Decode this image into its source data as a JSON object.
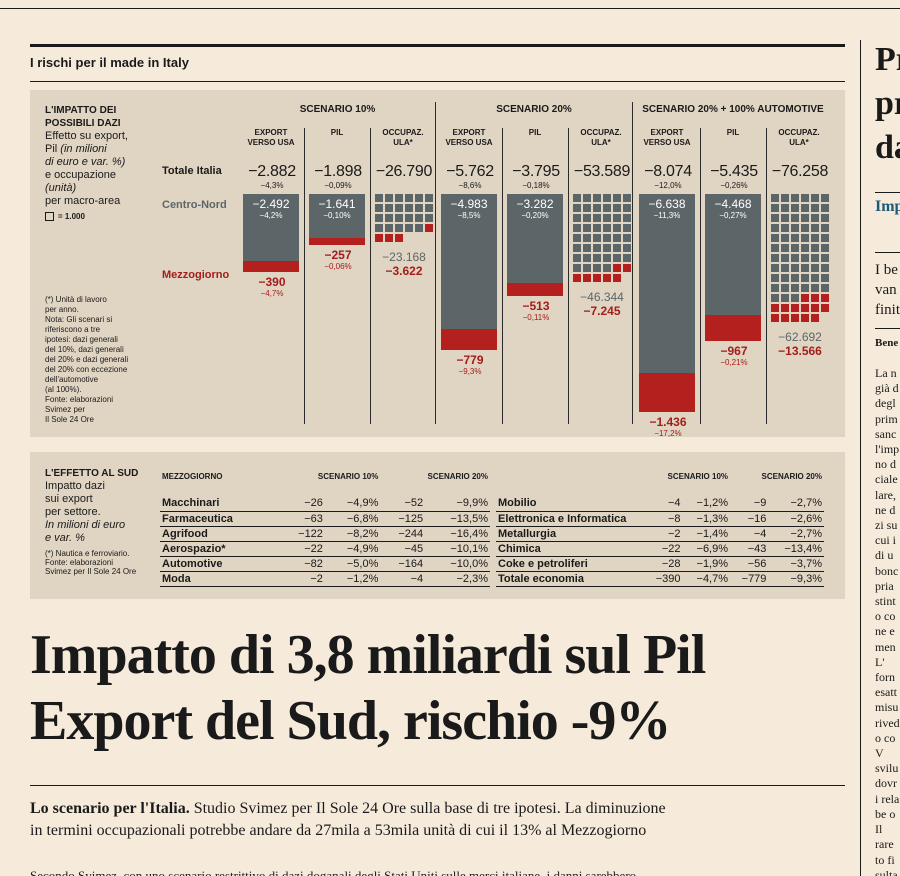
{
  "section_title": "I rischi per il made in Italy",
  "legend": {
    "title": "L'IMPATTO DEI POSSIBILI DAZI",
    "desc_1": "Effetto su export,",
    "desc_2": "Pil",
    "desc_2i": " (in milioni",
    "desc_3i": "di euro e var. %)",
    "desc_4": "e occupazione",
    "desc_5i": "(unità)",
    "desc_6": "per macro-area",
    "square_note": "= 1.000",
    "notes": [
      "(*) Unità di lavoro",
      "per anno.",
      "Nota: Gli scenari si",
      "riferiscono a tre",
      "ipotesi: dazi generali",
      "del 10%, dazi generali",
      "del 20% e dazi generali",
      "del 20% con eccezione",
      "dell'automotive",
      "(al 100%).",
      "Fonte: elaborazioni",
      "Svimez per",
      "Il Sole 24 Ore"
    ]
  },
  "row_labels": {
    "total": "Totale Italia",
    "north": "Centro-Nord",
    "south": "Mezzogiorno"
  },
  "scenarios": [
    {
      "name": "SCENARIO 10%",
      "cols": [
        {
          "head": [
            "EXPORT",
            "VERSO USA"
          ],
          "total": "−2.882",
          "total_pct": "−4,3%",
          "north": "−2.492",
          "north_pct": "−4,2%",
          "south": "−390",
          "south_pct": "−4,7%"
        },
        {
          "head": [
            "PIL"
          ],
          "total": "−1.898",
          "total_pct": "−0,09%",
          "north": "−1.641",
          "north_pct": "−0,10%",
          "south": "−257",
          "south_pct": "−0,06%"
        },
        {
          "head": [
            "OCCUPAZ.",
            "ULA*"
          ],
          "total": "−26.790",
          "north": "−23.168",
          "south": "−3.622",
          "north_sq": 23,
          "south_sq": 4
        }
      ]
    },
    {
      "name": "SCENARIO 20%",
      "cols": [
        {
          "head": [
            "EXPORT",
            "VERSO USA"
          ],
          "total": "−5.762",
          "total_pct": "−8,6%",
          "north": "−4.983",
          "north_pct": "−8,5%",
          "south": "−779",
          "south_pct": "−9,3%"
        },
        {
          "head": [
            "PIL"
          ],
          "total": "−3.795",
          "total_pct": "−0,18%",
          "north": "−3.282",
          "north_pct": "−0,20%",
          "south": "−513",
          "south_pct": "−0,11%"
        },
        {
          "head": [
            "OCCUPAZ.",
            "ULA*"
          ],
          "total": "−53.589",
          "north": "−46.344",
          "south": "−7.245",
          "north_sq": 46,
          "south_sq": 7
        }
      ]
    },
    {
      "name": "SCENARIO 20% + 100% AUTOMOTIVE",
      "cols": [
        {
          "head": [
            "EXPORT",
            "VERSO USA"
          ],
          "total": "−8.074",
          "total_pct": "−12,0%",
          "north": "−6.638",
          "north_pct": "−11,3%",
          "south": "−1.436",
          "south_pct": "−17,2%"
        },
        {
          "head": [
            "PIL"
          ],
          "total": "−5.435",
          "total_pct": "−0,26%",
          "north": "−4.468",
          "north_pct": "−0,27%",
          "south": "−967",
          "south_pct": "−0,21%"
        },
        {
          "head": [
            "OCCUPAZ.",
            "ULA*"
          ],
          "total": "−76.258",
          "north": "−62.692",
          "south": "−13.566",
          "north_sq": 63,
          "south_sq": 14
        }
      ]
    }
  ],
  "sud": {
    "title": "L'EFFETTO AL SUD",
    "d1": "Impatto dazi",
    "d2": "sui export",
    "d3": "per settore.",
    "d4i": "In milioni di euro",
    "d5i": "e var. %",
    "n1": "(*) Nautica e ferroviario.",
    "n2": "Fonte: elaborazioni",
    "n3": "Svimez per Il Sole 24 Ore",
    "head_left": "MEZZOGIORNO",
    "head_s10": "SCENARIO 10%",
    "head_s20": "SCENARIO 20%",
    "left_rows": [
      [
        "Macchinari",
        "−26",
        "−4,9%",
        "−52",
        "−9,9%"
      ],
      [
        "Farmaceutica",
        "−63",
        "−6,8%",
        "−125",
        "−13,5%"
      ],
      [
        "Agrifood",
        "−122",
        "−8,2%",
        "−244",
        "−16,4%"
      ],
      [
        "Aerospazio*",
        "−22",
        "−4,9%",
        "−45",
        "−10,1%"
      ],
      [
        "Automotive",
        "−82",
        "−5,0%",
        "−164",
        "−10,0%"
      ],
      [
        "Moda",
        "−2",
        "−1,2%",
        "−4",
        "−2,3%"
      ]
    ],
    "right_rows": [
      [
        "Mobilio",
        "−4",
        "−1,2%",
        "−9",
        "−2,7%"
      ],
      [
        "Elettronica e Informatica",
        "−8",
        "−1,3%",
        "−16",
        "−2,6%"
      ],
      [
        "Metallurgia",
        "−2",
        "−1,4%",
        "−4",
        "−2,7%"
      ],
      [
        "Chimica",
        "−22",
        "−6,9%",
        "−43",
        "−13,4%"
      ],
      [
        "Coke e petroliferi",
        "−28",
        "−1,9%",
        "−56",
        "−3,7%"
      ],
      [
        "Totale economia",
        "−390",
        "−4,7%",
        "−779",
        "−9,3%"
      ]
    ]
  },
  "headline_1": "Impatto di 3,8 miliardi sul Pil",
  "headline_2": "Export del Sud, rischio -9%",
  "subhead_bold": "Lo scenario per l'Italia.",
  "subhead_text_1": " Studio Svimez per Il Sole 24 Ore sulla base di tre ipotesi. La diminuzione",
  "subhead_text_2": "in termini occupazionali potrebbe andare da 27mila a 53mila unità di cui il 13% al Mezzogiorno",
  "bottom_cut": "Secondo Svimez, con uno scenario restrittivo di dazi doganali degli Stati Uniti sulle merci italiane, i danni sarebbero",
  "side": {
    "headline_lines": [
      "Pr",
      "pr",
      "da"
    ],
    "link": "Imp",
    "intro_lines": [
      "I be",
      "van",
      "finit"
    ],
    "byline": "Bene",
    "body_lines": [
      "La n",
      "già d",
      "degl",
      "prim",
      "sanc",
      "l'imp",
      "no d",
      "ciale",
      "lare,",
      "ne d",
      "zi su",
      "cui i",
      "di u",
      "bonc",
      "pria",
      "stint",
      "o co",
      "ne e",
      "men",
      "L'",
      "forn",
      "esatt",
      "misu",
      "rived",
      "o co",
      "V",
      "svilu",
      "dovr",
      "i rela",
      "be o",
      "Il",
      "rare",
      "to fi",
      "sulta"
    ]
  }
}
